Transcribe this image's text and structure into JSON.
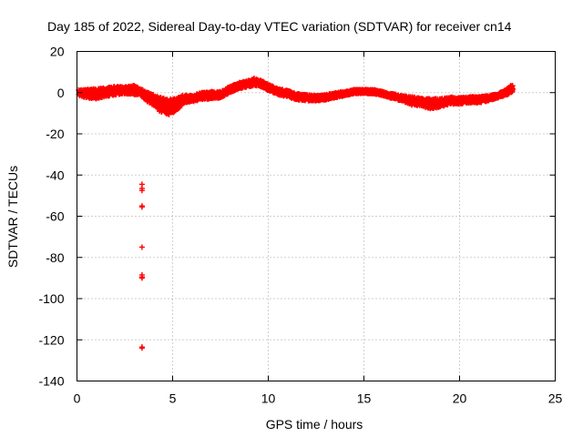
{
  "chart_data": {
    "type": "scatter",
    "title": "Day 185 of 2022, Sidereal Day-to-day VTEC variation (SDTVAR) for receiver cn14",
    "xlabel": "GPS time / hours",
    "ylabel": "SDTVAR / TECUs",
    "xlim": [
      0,
      25
    ],
    "ylim": [
      -140,
      20
    ],
    "xticks": [
      0,
      5,
      10,
      15,
      20,
      25
    ],
    "yticks": [
      20,
      0,
      -20,
      -40,
      -60,
      -80,
      -100,
      -120,
      -140
    ],
    "grid": true,
    "marker": "+",
    "color": "#ff0000",
    "series": [
      {
        "name": "SDTVAR",
        "band": [
          [
            0.1,
            -1.5,
            1.5
          ],
          [
            0.5,
            -2.5,
            1.5
          ],
          [
            1.0,
            -3.0,
            2.0
          ],
          [
            1.5,
            -2.0,
            2.5
          ],
          [
            2.0,
            -1.0,
            3.0
          ],
          [
            2.5,
            -0.5,
            3.0
          ],
          [
            3.0,
            -1.0,
            3.5
          ],
          [
            3.3,
            -1.0,
            2.0
          ],
          [
            3.6,
            -4.0,
            0.5
          ],
          [
            4.0,
            -6.0,
            -1.0
          ],
          [
            4.3,
            -9.0,
            -2.0
          ],
          [
            4.7,
            -11.0,
            -3.0
          ],
          [
            5.0,
            -10.0,
            -3.0
          ],
          [
            5.3,
            -8.0,
            -2.0
          ],
          [
            5.6,
            -5.0,
            -1.0
          ],
          [
            6.0,
            -4.5,
            -1.5
          ],
          [
            6.5,
            -3.5,
            0.0
          ],
          [
            7.0,
            -3.0,
            0.5
          ],
          [
            7.5,
            -2.5,
            0.5
          ],
          [
            8.0,
            0.0,
            3.0
          ],
          [
            8.5,
            2.0,
            5.0
          ],
          [
            9.0,
            3.0,
            6.0
          ],
          [
            9.3,
            3.5,
            7.0
          ],
          [
            9.7,
            2.5,
            5.5
          ],
          [
            10.0,
            1.0,
            4.0
          ],
          [
            10.5,
            -1.0,
            2.0
          ],
          [
            11.0,
            -2.0,
            1.0
          ],
          [
            11.5,
            -3.5,
            -0.5
          ],
          [
            12.0,
            -4.0,
            -1.0
          ],
          [
            12.5,
            -4.0,
            -1.5
          ],
          [
            13.0,
            -3.5,
            -1.0
          ],
          [
            13.5,
            -2.5,
            0.0
          ],
          [
            14.0,
            -1.5,
            0.5
          ],
          [
            14.5,
            -0.5,
            1.5
          ],
          [
            15.0,
            -0.5,
            1.5
          ],
          [
            15.5,
            -0.5,
            1.5
          ],
          [
            16.0,
            -1.5,
            0.5
          ],
          [
            16.5,
            -3.0,
            -0.5
          ],
          [
            17.0,
            -4.0,
            -1.5
          ],
          [
            17.5,
            -6.0,
            -2.0
          ],
          [
            18.0,
            -6.5,
            -2.5
          ],
          [
            18.5,
            -8.0,
            -3.0
          ],
          [
            19.0,
            -7.0,
            -3.0
          ],
          [
            19.5,
            -5.5,
            -2.0
          ],
          [
            20.0,
            -5.5,
            -2.5
          ],
          [
            20.5,
            -5.0,
            -2.0
          ],
          [
            21.0,
            -5.0,
            -2.0
          ],
          [
            21.5,
            -4.0,
            -1.5
          ],
          [
            22.0,
            -2.5,
            -0.5
          ],
          [
            22.5,
            -1.0,
            2.0
          ],
          [
            22.8,
            0.5,
            4.5
          ]
        ],
        "outliers": [
          [
            3.4,
            -44.5
          ],
          [
            3.4,
            -46.5
          ],
          [
            3.4,
            -47.5
          ],
          [
            3.4,
            -55.0
          ],
          [
            3.4,
            -55.5
          ],
          [
            3.4,
            -75.0
          ],
          [
            3.4,
            -88.5
          ],
          [
            3.4,
            -89.5
          ],
          [
            3.4,
            -90.0
          ],
          [
            3.4,
            -123.5
          ],
          [
            3.4,
            -124.0
          ]
        ]
      }
    ]
  }
}
